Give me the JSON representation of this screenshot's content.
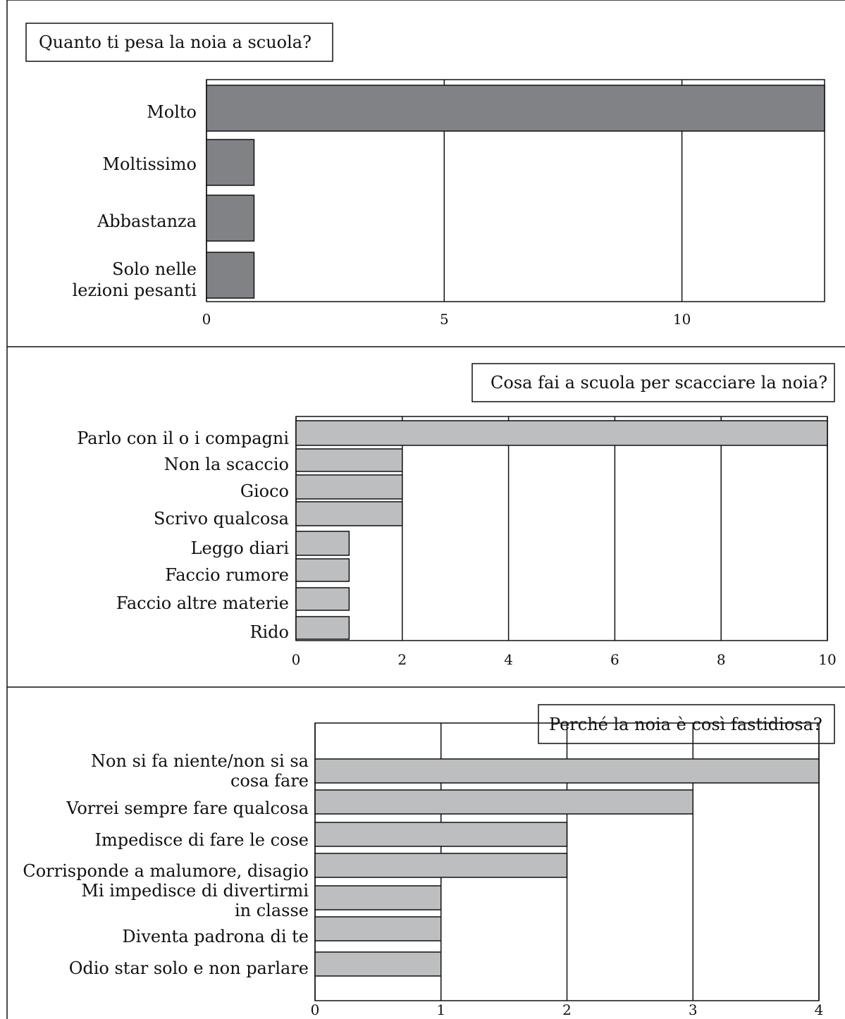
{
  "chart_data": [
    {
      "type": "bar",
      "orientation": "horizontal",
      "title": "Quanto ti pesa la noia a scuola?",
      "categories": [
        "Molto",
        "Moltissimo",
        "Abbastanza",
        "Solo nelle lezioni pesanti"
      ],
      "values": [
        13,
        1,
        1,
        1
      ],
      "xlim": [
        0,
        13
      ],
      "xticks": [
        0,
        5,
        10
      ],
      "xtick_labels": [
        "0",
        "5",
        "10"
      ],
      "bar_color": "#808285",
      "grid": true
    },
    {
      "type": "bar",
      "orientation": "horizontal",
      "title": "Cosa fai a scuola per scacciare la noia?",
      "categories": [
        "Parlo con il o i compagni",
        "Non la scaccio",
        "Gioco",
        "Scrivo qualcosa",
        "Leggo diari",
        "Faccio rumore",
        "Faccio altre materie",
        "Rido"
      ],
      "values": [
        10,
        2,
        2,
        2,
        1,
        1,
        1,
        1
      ],
      "xlim": [
        0,
        10
      ],
      "xticks": [
        0,
        2,
        4,
        6,
        8,
        10
      ],
      "xtick_labels": [
        "0",
        "2",
        "4",
        "6",
        "8",
        "10"
      ],
      "bar_color": "#bcbec0",
      "grid": true
    },
    {
      "type": "bar",
      "orientation": "horizontal",
      "title": "Perché la noia è così fastidiosa?",
      "categories": [
        "Non si fa niente/non si sa cosa fare",
        "Vorrei sempre fare qualcosa",
        "Impedisce di fare le cose",
        "Corrisponde a malumore, disagio",
        "Mi impedisce di divertirmi in classe",
        "Diventa padrona di te",
        "Odio star solo e non parlare"
      ],
      "values": [
        4,
        3,
        2,
        2,
        1,
        1,
        1
      ],
      "xlim": [
        0,
        4
      ],
      "xticks": [
        0,
        1,
        2,
        3,
        4
      ],
      "xtick_labels": [
        "0",
        "1",
        "2",
        "3",
        "4"
      ],
      "bar_color": "#bcbec0",
      "grid": true
    }
  ]
}
